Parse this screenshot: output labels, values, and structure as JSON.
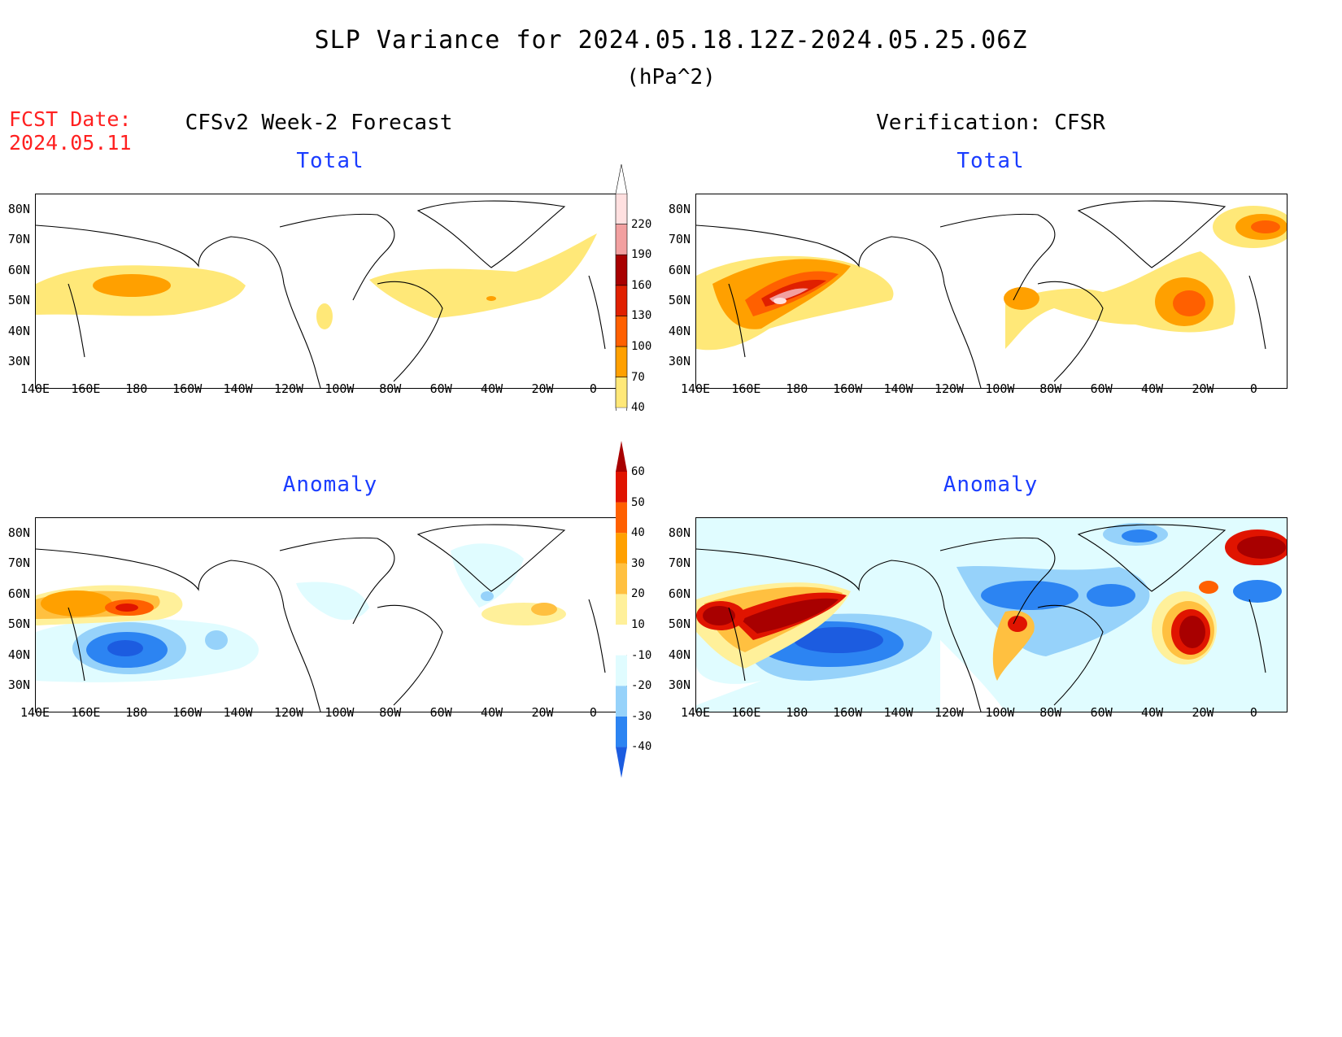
{
  "title": "SLP Variance for 2024.05.18.12Z-2024.05.25.06Z",
  "units": "(hPa^2)",
  "fcst_date_label": "FCST Date:",
  "fcst_date": "2024.05.11",
  "left_header": "CFSv2 Week-2 Forecast",
  "right_header": "Verification: CFSR",
  "panels": {
    "fc_total_label": "Total",
    "obs_total_label": "Total",
    "fc_anom_label": "Anomaly",
    "obs_anom_label": "Anomaly"
  },
  "lat_ticks": [
    "80N",
    "70N",
    "60N",
    "50N",
    "40N",
    "30N"
  ],
  "lon_ticks": [
    "140E",
    "160E",
    "180",
    "160W",
    "140W",
    "120W",
    "100W",
    "80W",
    "60W",
    "40W",
    "20W",
    "0"
  ],
  "total_colorbar": {
    "levels": [
      "40",
      "70",
      "100",
      "130",
      "160",
      "190",
      "220"
    ],
    "colors": [
      "#ffe878",
      "#ffa000",
      "#ff6000",
      "#e02000",
      "#a80000",
      "#f2a0a0",
      "#ffe0e0"
    ]
  },
  "anomaly_colorbar": {
    "levels": [
      "-40",
      "-30",
      "-20",
      "-10",
      "10",
      "20",
      "30",
      "40",
      "50",
      "60"
    ],
    "colors": [
      "#1c5ce0",
      "#2c84f2",
      "#96d2fa",
      "#e0fcff",
      "#ffffff",
      "#fff09a",
      "#ffc040",
      "#ffa000",
      "#ff6000",
      "#e01400",
      "#a80000"
    ]
  }
}
